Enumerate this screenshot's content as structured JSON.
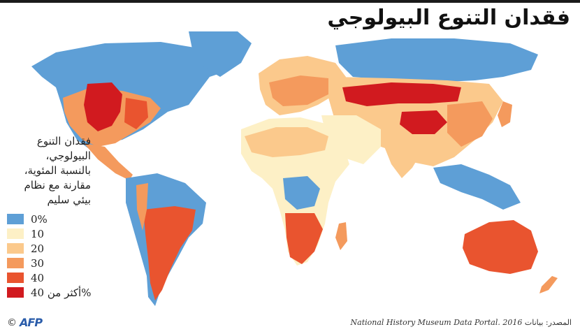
{
  "header": {
    "title": "فقدان التنوع البيولوجي"
  },
  "legend": {
    "title_lines": [
      "فقدان التنوع",
      "البيولوجي،",
      "بالنسبة المئوية،",
      "مقارنة مع نظام",
      "بيئي سليم"
    ],
    "items": [
      {
        "label": "0%",
        "color": "#5e9fd6"
      },
      {
        "label": "10",
        "color": "#fdf0c6"
      },
      {
        "label": "20",
        "color": "#fbc98c"
      },
      {
        "label": "30",
        "color": "#f49a5d"
      },
      {
        "label": "40",
        "color": "#e9542f"
      },
      {
        "label": "أكثر من 40%",
        "color": "#d11a1f"
      }
    ]
  },
  "source": {
    "prefix": "المصدر: بيانات",
    "publisher": "National History Museum Data Portal",
    "year": "2016"
  },
  "credit": {
    "copyright": "©",
    "logo_text": "AFP"
  },
  "icons": {
    "logo": "afp-logo-icon"
  }
}
